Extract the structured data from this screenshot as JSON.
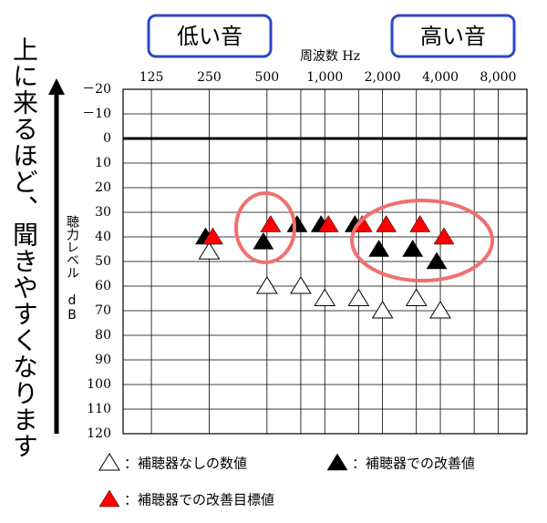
{
  "chart_data": {
    "type": "scatter",
    "annotations": [
      "低い音",
      "高い音"
    ],
    "xlabel": "周波数 Hz",
    "ylabel": "聴力レベル dB",
    "side_note": "上に来るほど、聞きやすくなります",
    "xscale": "log",
    "xlim": [
      89,
      11300
    ],
    "xticks": [
      125,
      250,
      500,
      {
        "value": 1000,
        "label": "1,000"
      },
      {
        "value": 2000,
        "label": "2,000"
      },
      {
        "value": 4000,
        "label": "4,000"
      },
      {
        "value": 8000,
        "label": "8,000"
      }
    ],
    "x_minor_ticks": [
      750,
      1500,
      3000,
      6000
    ],
    "ylim": [
      -20,
      120
    ],
    "y_inverted": true,
    "yticks": [
      {
        "value": -20,
        "label": "－20"
      },
      {
        "value": -10,
        "label": "－10"
      },
      0,
      10,
      20,
      30,
      40,
      50,
      60,
      70,
      80,
      90,
      100,
      110,
      120
    ],
    "grid": true,
    "series": [
      {
        "name": "：補聴器なしの数値",
        "color": "#ffffff",
        "x": [
          250,
          500,
          750,
          1000,
          1500,
          2000,
          3000,
          4000
        ],
        "values": [
          46,
          60,
          60,
          65,
          65,
          70,
          65,
          70
        ]
      },
      {
        "name": "：補聴器での改善値",
        "color": "#000000",
        "x": [
          250,
          500,
          750,
          1000,
          1500,
          2000,
          3000,
          4000
        ],
        "values": [
          40,
          42,
          35,
          35,
          35,
          45,
          45,
          50
        ]
      },
      {
        "name": "：補聴器での改善目標値",
        "color": "#ff0000",
        "x": [
          250,
          500,
          1000,
          1500,
          2000,
          3000,
          4000
        ],
        "values": [
          40,
          35,
          35,
          35,
          35,
          35,
          40
        ]
      }
    ]
  }
}
